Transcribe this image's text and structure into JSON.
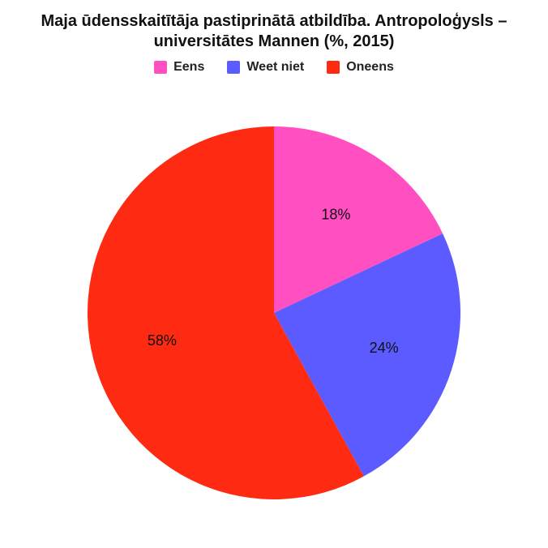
{
  "title_line1": "Maja ūdensskaitītāja pastiprinātā atbildība. Antropoloģysls –",
  "title_line2": "universitātes Mannen (%, 2015)",
  "title_fontsize": 20,
  "title_color": "#111111",
  "legend_fontsize": 16,
  "chart": {
    "type": "pie",
    "background_color": "#ffffff",
    "radius": 230,
    "label_fontsize": 18,
    "label_color": "#111111",
    "label_radius_factor": 0.62,
    "slices": [
      {
        "label": "Eens",
        "value": 18,
        "color": "#ff4fc1",
        "pct_text": "18%"
      },
      {
        "label": "Weet niet",
        "value": 24,
        "color": "#5b5bff",
        "pct_text": "24%"
      },
      {
        "label": "Oneens",
        "value": 58,
        "color": "#ff2a12",
        "pct_text": "58%"
      }
    ]
  }
}
